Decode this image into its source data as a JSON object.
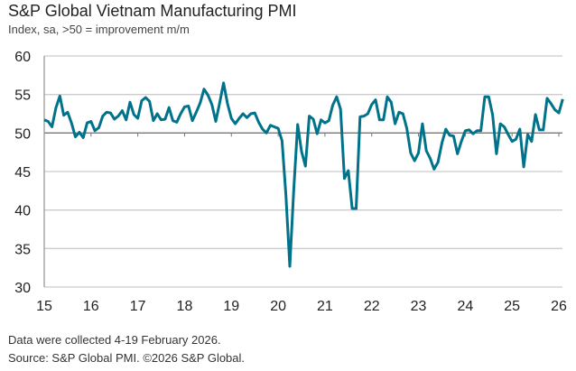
{
  "chart_data": {
    "type": "line",
    "title": "S&P Global Vietnam Manufacturing PMI",
    "subtitle": "Index, sa, >50 = improvement m/m",
    "x_start": "2015-01",
    "x_frequency": "monthly",
    "x_tick_labels": [
      "15",
      "16",
      "17",
      "18",
      "19",
      "20",
      "21",
      "22",
      "23",
      "24",
      "25",
      "26"
    ],
    "y_tick_labels": [
      "60",
      "55",
      "50",
      "45",
      "40",
      "35",
      "30"
    ],
    "ylim": [
      30,
      60
    ],
    "grid": true,
    "line_color": "#00728a",
    "values": [
      51.7,
      51.5,
      50.8,
      53.3,
      54.8,
      52.3,
      52.7,
      51.3,
      49.5,
      50.1,
      49.4,
      51.3,
      51.5,
      50.3,
      50.7,
      52.2,
      52.7,
      52.6,
      51.8,
      52.2,
      52.9,
      51.7,
      54.0,
      52.4,
      51.9,
      54.2,
      54.6,
      54.1,
      51.6,
      52.5,
      51.7,
      51.8,
      53.3,
      51.6,
      51.4,
      52.5,
      53.4,
      53.5,
      51.6,
      52.7,
      53.9,
      55.7,
      54.9,
      53.7,
      51.5,
      53.9,
      56.5,
      53.8,
      51.9,
      51.2,
      51.9,
      52.5,
      52.0,
      52.5,
      52.6,
      51.4,
      50.5,
      50.0,
      51.0,
      50.8,
      50.6,
      49.0,
      41.9,
      32.7,
      42.7,
      51.1,
      47.6,
      45.7,
      52.2,
      51.8,
      49.9,
      51.7,
      51.3,
      51.6,
      53.6,
      54.7,
      53.1,
      44.1,
      45.1,
      40.2,
      40.2,
      52.1,
      52.2,
      52.5,
      53.7,
      54.3,
      51.7,
      51.7,
      54.7,
      54.0,
      51.2,
      52.7,
      52.5,
      50.6,
      47.4,
      46.4,
      47.4,
      51.2,
      47.7,
      46.7,
      45.3,
      46.2,
      48.7,
      50.5,
      49.7,
      49.6,
      47.3,
      48.9,
      50.3,
      50.4,
      49.9,
      50.3,
      50.3,
      54.7,
      54.7,
      52.4,
      47.3,
      51.2,
      50.8,
      49.8,
      48.9,
      49.2,
      50.5,
      45.6,
      49.8,
      48.9,
      52.4,
      50.4,
      50.4,
      54.5,
      53.8,
      53.0,
      52.6,
      54.4
    ]
  },
  "footer": {
    "note": "Data were collected 4-19 February 2026.",
    "source": "Source: S&P Global PMI. ©2026 S&P Global."
  }
}
